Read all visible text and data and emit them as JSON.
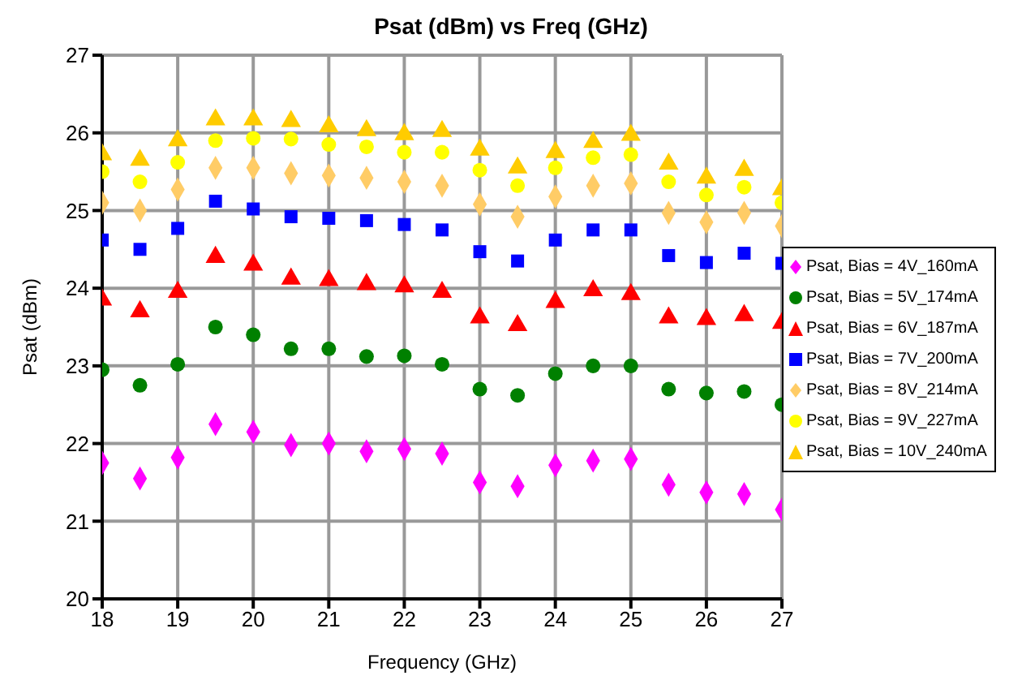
{
  "chart_data": {
    "type": "scatter",
    "title": "Psat (dBm) vs Freq (GHz)",
    "xlabel": "Frequency (GHz)",
    "ylabel": "Psat (dBm)",
    "x": [
      18,
      18.5,
      19,
      19.5,
      20,
      20.5,
      21,
      21.5,
      22,
      22.5,
      23,
      23.5,
      24,
      24.5,
      25,
      25.5,
      26,
      26.5,
      27
    ],
    "xlim": [
      18,
      27
    ],
    "xticks": [
      18,
      19,
      20,
      21,
      22,
      23,
      24,
      25,
      26,
      27
    ],
    "ylim": [
      20,
      27
    ],
    "yticks": [
      20,
      21,
      22,
      23,
      24,
      25,
      26,
      27
    ],
    "grid": true,
    "legend": "right",
    "series": [
      {
        "name": "Psat, Bias = 4V_160mA",
        "color": "#ff00ff",
        "marker": "diamond",
        "values": [
          21.75,
          21.55,
          21.82,
          22.25,
          22.15,
          21.98,
          22.0,
          21.9,
          21.93,
          21.87,
          21.5,
          21.45,
          21.72,
          21.78,
          21.8,
          21.47,
          21.37,
          21.35,
          21.15
        ]
      },
      {
        "name": "Psat, Bias = 5V_174mA",
        "color": "#008000",
        "marker": "circle",
        "values": [
          22.95,
          22.75,
          23.02,
          23.5,
          23.4,
          23.22,
          23.22,
          23.12,
          23.13,
          23.02,
          22.7,
          22.62,
          22.9,
          23.0,
          23.0,
          22.7,
          22.65,
          22.67,
          22.5
        ]
      },
      {
        "name": "Psat, Bias = 6V_187mA",
        "color": "#ff0000",
        "marker": "triangle",
        "values": [
          23.85,
          23.7,
          23.95,
          24.4,
          24.3,
          24.12,
          24.1,
          24.05,
          24.02,
          23.95,
          23.62,
          23.52,
          23.82,
          23.97,
          23.92,
          23.62,
          23.6,
          23.65,
          23.55
        ]
      },
      {
        "name": "Psat, Bias = 7V_200mA",
        "color": "#0000ff",
        "marker": "square",
        "values": [
          24.62,
          24.5,
          24.77,
          25.12,
          25.02,
          24.92,
          24.9,
          24.87,
          24.82,
          24.75,
          24.47,
          24.35,
          24.62,
          24.75,
          24.75,
          24.42,
          24.33,
          24.45,
          24.32
        ]
      },
      {
        "name": "Psat, Bias = 8V_214mA",
        "color": "#ffcc66",
        "marker": "diamond",
        "values": [
          25.1,
          25.0,
          25.27,
          25.55,
          25.55,
          25.48,
          25.45,
          25.42,
          25.37,
          25.32,
          25.08,
          24.92,
          25.18,
          25.32,
          25.35,
          24.97,
          24.85,
          24.97,
          24.8
        ]
      },
      {
        "name": "Psat, Bias = 9V_227mA",
        "color": "#ffff00",
        "marker": "circle",
        "values": [
          25.5,
          25.37,
          25.62,
          25.9,
          25.93,
          25.92,
          25.85,
          25.82,
          25.75,
          25.75,
          25.52,
          25.32,
          25.55,
          25.68,
          25.72,
          25.37,
          25.2,
          25.3,
          25.1
        ]
      },
      {
        "name": "Psat, Bias = 10V_240mA",
        "color": "#ffcc00",
        "marker": "triangle",
        "values": [
          25.72,
          25.65,
          25.9,
          26.17,
          26.17,
          26.15,
          26.08,
          26.03,
          25.98,
          26.02,
          25.78,
          25.55,
          25.75,
          25.88,
          25.97,
          25.6,
          25.42,
          25.52,
          25.27
        ]
      }
    ]
  }
}
